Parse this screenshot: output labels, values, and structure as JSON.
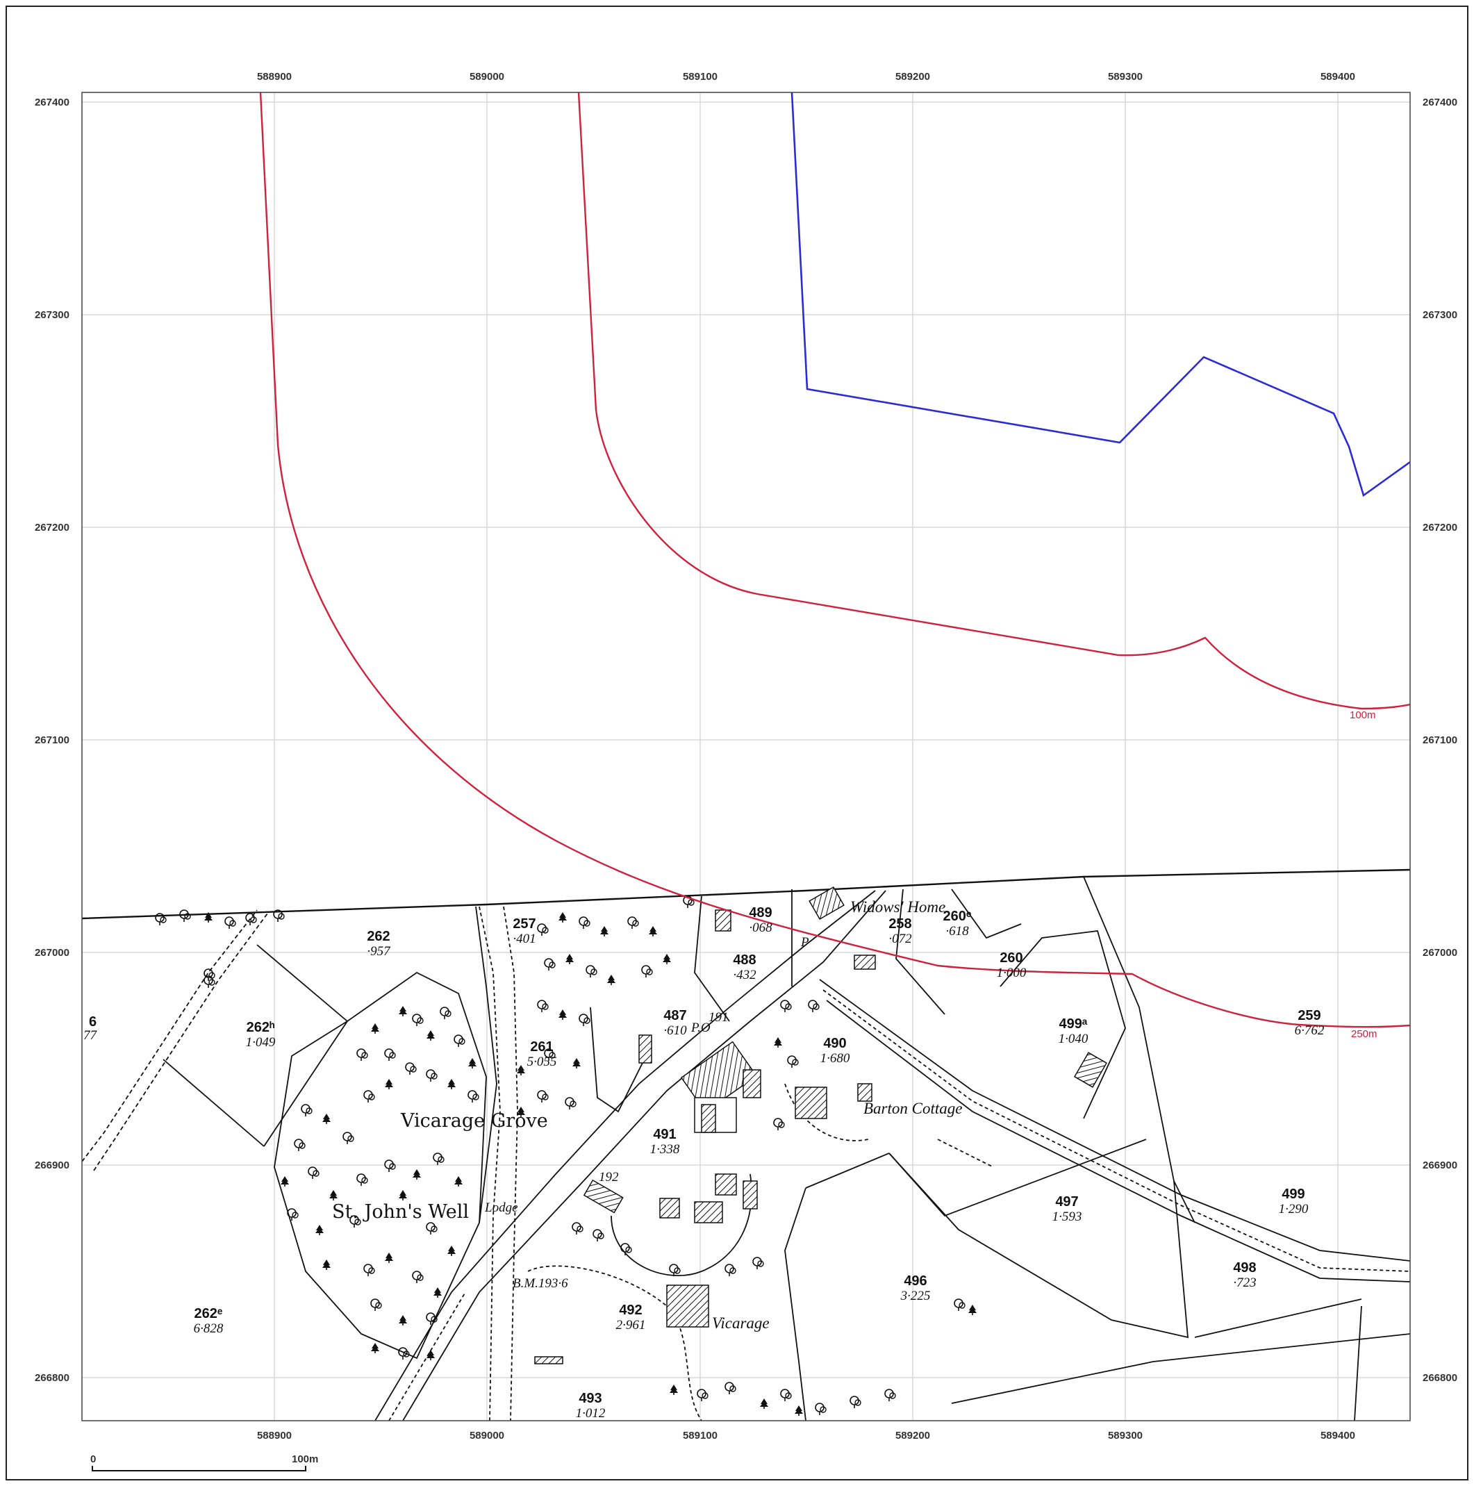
{
  "map": {
    "x_ticks": [
      "588900",
      "589000",
      "589100",
      "589200",
      "589300",
      "589400"
    ],
    "y_ticks": [
      "267400",
      "267300",
      "267200",
      "267100",
      "267000",
      "266900",
      "266800"
    ],
    "buffer_labels": {
      "inner": "100m",
      "outer": "250m"
    },
    "scale_bar": {
      "start": "0",
      "end": "100m"
    },
    "colors": {
      "site_boundary": "#2a2ad8",
      "buffer": "#d0203c",
      "linework": "#111111",
      "grid": "#d8d8d8"
    },
    "place_names": {
      "vicarage_grove": "Vicarage Grove",
      "st_johns_well": "St. John's Well",
      "lodge": "Lodge",
      "widows_home": "Widows' Home",
      "barton_cottage": "Barton Cottage",
      "vicarage": "Vicarage",
      "post_office": "P.O",
      "benchmark": "B.M.193·6",
      "bm_192": "192",
      "bm_191": "191",
      "pump": "P"
    },
    "parcels": [
      {
        "id": "262",
        "area": "·957"
      },
      {
        "id": "262ʰ",
        "area": "1·049"
      },
      {
        "id": "262ᵉ",
        "area": "6·828"
      },
      {
        "id": "257",
        "area": "·401"
      },
      {
        "id": "261",
        "area": "5·055"
      },
      {
        "id": "489",
        "area": "·068"
      },
      {
        "id": "488",
        "area": "·432"
      },
      {
        "id": "487",
        "area": "·610"
      },
      {
        "id": "258",
        "area": "·072"
      },
      {
        "id": "260ᵉ",
        "area": "·618"
      },
      {
        "id": "260",
        "area": "1·000"
      },
      {
        "id": "490",
        "area": "1·680"
      },
      {
        "id": "491",
        "area": "1·338"
      },
      {
        "id": "492",
        "area": "2·961"
      },
      {
        "id": "493",
        "area": "1·012"
      },
      {
        "id": "496",
        "area": "3·225"
      },
      {
        "id": "497",
        "area": "1·593"
      },
      {
        "id": "498",
        "area": "·723"
      },
      {
        "id": "499",
        "area": "1·290"
      },
      {
        "id": "499ᵃ",
        "area": "1·040"
      },
      {
        "id": "259",
        "area": "6·762"
      }
    ],
    "edge_fragment": {
      "top": "6",
      "bottom": "77"
    }
  }
}
